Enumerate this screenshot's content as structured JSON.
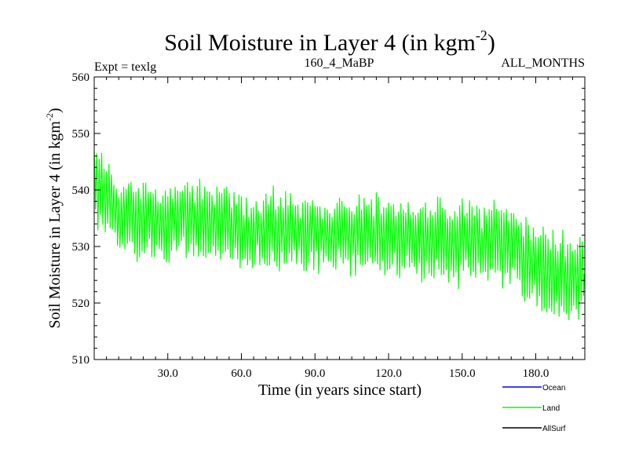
{
  "chart_data": {
    "type": "line",
    "title_main": "Soil Moisture in Layer 4 (in kgm",
    "title_exponent": "-2",
    "title_close": ")",
    "subtitle_left": "Expt = texlg",
    "subtitle_center": "160_4_MaBP",
    "subtitle_right": "ALL_MONTHS",
    "xlabel": "Time (in years since start)",
    "ylabel_main": "Soil Moisture in Layer 4 (in kgm",
    "ylabel_exponent": "-2",
    "ylabel_close": ")",
    "xlim": [
      0,
      200
    ],
    "ylim": [
      510,
      560
    ],
    "x_ticks": [
      30,
      60,
      90,
      120,
      150,
      180
    ],
    "x_tick_labels": [
      "30.0",
      "60.0",
      "90.0",
      "120.0",
      "150.0",
      "180.0"
    ],
    "y_ticks": [
      510,
      520,
      530,
      540,
      550,
      560
    ],
    "y_tick_labels": [
      "510",
      "520",
      "530",
      "540",
      "550",
      "560"
    ],
    "series": [
      {
        "name": "Land",
        "color": "#00ff00",
        "description": "annual-cycle signal, approx. annual means and half-amplitudes",
        "years": [
          0,
          5,
          10,
          20,
          30,
          40,
          50,
          60,
          70,
          80,
          90,
          100,
          110,
          120,
          130,
          140,
          150,
          160,
          170,
          175,
          180,
          185,
          190,
          195,
          200
        ],
        "mean": [
          541,
          538,
          535,
          535,
          534,
          535,
          533.5,
          533,
          532.5,
          532.5,
          532,
          532,
          531.5,
          532,
          531.5,
          531,
          530.5,
          531,
          530,
          528,
          526,
          525,
          524.5,
          525,
          525
        ],
        "half_amplitude": [
          6,
          6,
          5.5,
          5.5,
          5.5,
          5.5,
          5.5,
          5.5,
          5.5,
          5.5,
          5.5,
          5.5,
          5.5,
          5.5,
          5.5,
          5.5,
          5.5,
          5.5,
          6,
          6,
          6,
          6.5,
          6.5,
          6.5,
          6.5
        ]
      }
    ],
    "legend": [
      {
        "label": "Ocean",
        "color": "#0000ff"
      },
      {
        "label": "Land",
        "color": "#00ff00"
      },
      {
        "label": "AllSurf",
        "color": "#000000"
      }
    ]
  }
}
